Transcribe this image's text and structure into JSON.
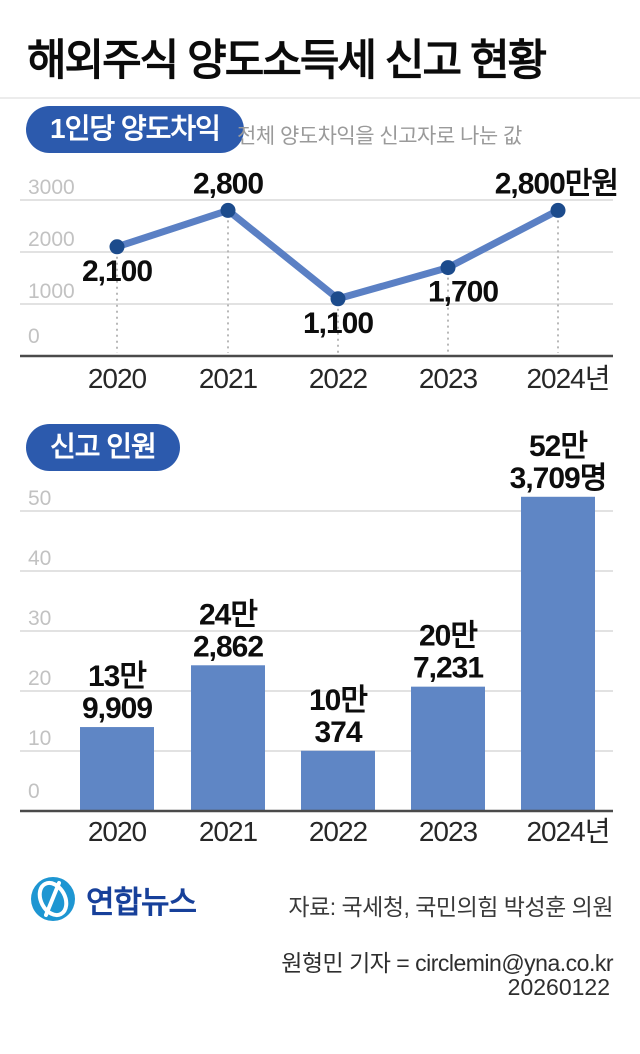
{
  "header": {
    "title": "해외주식 양도소득세 신고 현황"
  },
  "colors": {
    "badge_bg": "#2c5aad",
    "line": "#5b80c4",
    "point": "#1c4b8c",
    "bar": "#5f86c5",
    "grid": "#d8d8d8",
    "axis": "#4a4a4a",
    "dotted": "#b8b8b8",
    "tick_text": "#c2c2c2",
    "xlabel_text": "#272727",
    "data_label_text": "#0d0d0d",
    "subtitle_text": "#9a9a9a",
    "footer_text": "#3a3a3a",
    "logo_blue": "#1e96d2",
    "logo_navy": "#17409a",
    "background": "#ffffff"
  },
  "chart_data": [
    {
      "type": "line",
      "badge": "1인당 양도차익",
      "subtitle": "전체 양도차익을 신고자로 나눈 값",
      "unit": "만원",
      "categories": [
        "2020",
        "2021",
        "2022",
        "2023",
        "2024년"
      ],
      "values": [
        2100,
        2800,
        1100,
        1700,
        2800
      ],
      "point_labels": [
        "2,100",
        "2,800",
        "1,100",
        "1,700",
        "2,800만원"
      ],
      "point_label_side": [
        "below",
        "above",
        "below",
        "below",
        "above"
      ],
      "y_ticks": [
        "3000",
        "2000",
        "1000",
        "0"
      ],
      "y_tick_values": [
        3000,
        2000,
        1000,
        0
      ],
      "ylim": [
        0,
        3000
      ],
      "grid": "horizontal",
      "legend": "none"
    },
    {
      "type": "bar",
      "badge": "신고 인원",
      "unit": "명",
      "categories": [
        "2020",
        "2021",
        "2022",
        "2023",
        "2024년"
      ],
      "values": [
        139909,
        242862,
        100374,
        207231,
        523709
      ],
      "bar_labels": [
        [
          "13만",
          "9,909"
        ],
        [
          "24만",
          "2,862"
        ],
        [
          "10만",
          "374"
        ],
        [
          "20만",
          "7,231"
        ],
        [
          "52만",
          "3,709명"
        ]
      ],
      "y_ticks": [
        "50",
        "40",
        "30",
        "20",
        "10",
        "0"
      ],
      "y_tick_values": [
        50,
        40,
        30,
        20,
        10,
        0
      ],
      "y_axis_unit": "만 명",
      "ylim": [
        0,
        55
      ],
      "grid": "horizontal",
      "legend": "none"
    }
  ],
  "footer": {
    "logo_text": "연합뉴스",
    "source": "자료: 국세청, 국민의힘 박성훈 의원",
    "reporter": "원형민 기자 = circlemin@yna.co.kr",
    "date": "20260122"
  }
}
